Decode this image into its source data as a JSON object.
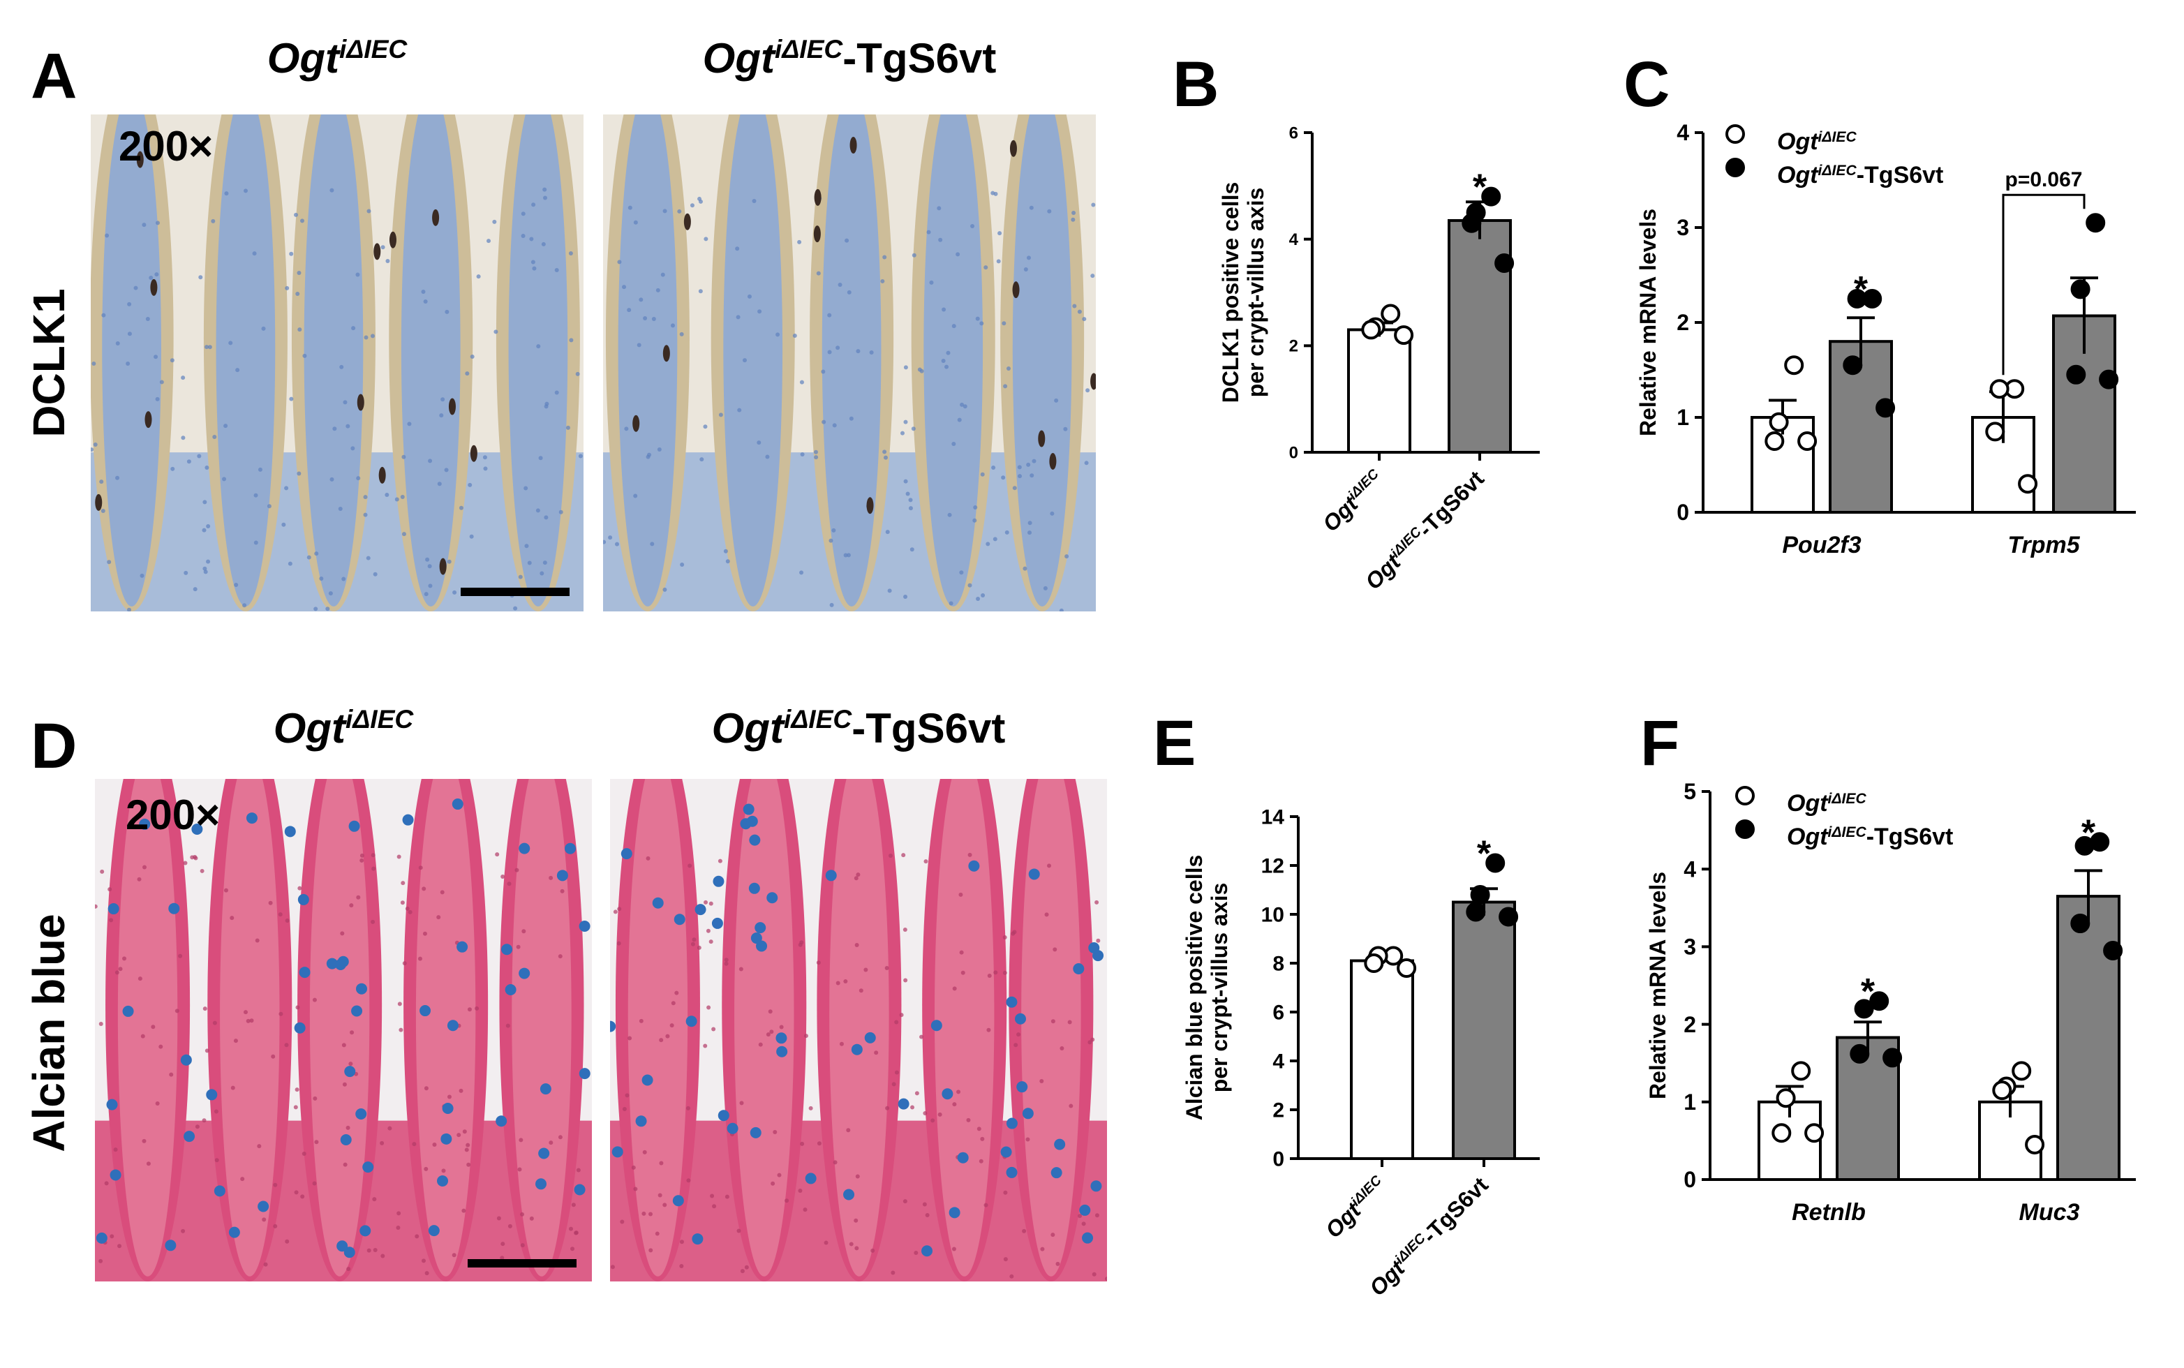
{
  "panels": [
    {
      "label": "A",
      "row_label": "DCLK1",
      "magnification": "200×",
      "titles": [
        [
          "Ogt",
          "iΔIEC"
        ],
        [
          "Ogt",
          "iΔIEC",
          "-TgS6vt"
        ]
      ]
    },
    {
      "label": "D",
      "row_label": "Alcian blue",
      "magnification": "200×",
      "titles": [
        [
          "Ogt",
          "iΔIEC"
        ],
        [
          "Ogt",
          "iΔIEC",
          "-TgS6vt"
        ]
      ]
    }
  ],
  "chart_data": [
    {
      "type": "bar",
      "panel_label": "B",
      "y_label": [
        "DCLK1 positive cells",
        "per crypt-villus axis"
      ],
      "categories": [
        [
          "Ogt",
          "iΔIEC"
        ],
        [
          "Ogt",
          "iΔIEC",
          "-TgS6vt"
        ]
      ],
      "values": [
        2.3,
        4.35
      ],
      "errors": [
        0.13,
        0.35
      ],
      "points": [
        [
          2.6,
          2.35,
          2.3,
          2.2
        ],
        [
          4.8,
          4.5,
          4.3,
          3.55
        ]
      ],
      "colors": [
        "#ffffff",
        "#808080"
      ],
      "marker_colors": [
        "#ffffff",
        "#000000"
      ],
      "ylim": [
        0,
        6
      ],
      "yticks": [
        0,
        2,
        4,
        6
      ],
      "annotations": [
        {
          "text": "*",
          "category": 1
        }
      ]
    },
    {
      "type": "bar",
      "panel_label": "C",
      "y_label": [
        "Relative mRNA levels"
      ],
      "categories": [
        "Pou2f3",
        "Trpm5"
      ],
      "series": [
        {
          "name": [
            "Ogt",
            "iΔIEC"
          ],
          "color": "#ffffff",
          "marker_color": "#ffffff",
          "values": [
            1.0,
            1.0
          ],
          "errors": [
            0.18,
            0.27
          ],
          "points": [
            [
              1.55,
              0.95,
              0.75,
              0.75
            ],
            [
              1.3,
              1.3,
              0.85,
              0.3
            ]
          ]
        },
        {
          "name": [
            "Ogt",
            "iΔIEC",
            "-TgS6vt"
          ],
          "color": "#808080",
          "marker_color": "#000000",
          "values": [
            1.8,
            2.07
          ],
          "errors": [
            0.25,
            0.4
          ],
          "points": [
            [
              2.25,
              2.25,
              1.55,
              1.1
            ],
            [
              3.05,
              2.35,
              1.45,
              1.4
            ]
          ]
        }
      ],
      "ylim": [
        0,
        4
      ],
      "yticks": [
        0,
        1,
        2,
        3,
        4
      ],
      "annotations": [
        {
          "text": "*",
          "category": 0,
          "series": 1
        },
        {
          "text": "p=0.067",
          "category": 1,
          "bracket": true
        }
      ]
    },
    {
      "type": "bar",
      "panel_label": "E",
      "y_label": [
        "Alcian blue positive cells",
        "per crypt-villus axis"
      ],
      "categories": [
        [
          "Ogt",
          "iΔIEC"
        ],
        [
          "Ogt",
          "iΔIEC",
          "-TgS6vt"
        ]
      ],
      "values": [
        8.1,
        10.5
      ],
      "errors": [
        0.2,
        0.55
      ],
      "points": [
        [
          8.3,
          8.3,
          8.0,
          7.8
        ],
        [
          12.1,
          10.8,
          10.1,
          9.9
        ]
      ],
      "colors": [
        "#ffffff",
        "#808080"
      ],
      "marker_colors": [
        "#ffffff",
        "#000000"
      ],
      "ylim": [
        0,
        14
      ],
      "yticks": [
        0,
        2,
        4,
        6,
        8,
        10,
        12,
        14
      ],
      "annotations": [
        {
          "text": "*",
          "category": 1
        }
      ]
    },
    {
      "type": "bar",
      "panel_label": "F",
      "y_label": [
        "Relative mRNA levels"
      ],
      "categories": [
        "Retnlb",
        "Muc3"
      ],
      "series": [
        {
          "name": [
            "Ogt",
            "iΔIEC"
          ],
          "color": "#ffffff",
          "marker_color": "#ffffff",
          "values": [
            1.0,
            1.0
          ],
          "errors": [
            0.2,
            0.2
          ],
          "points": [
            [
              1.4,
              1.05,
              0.6,
              0.6
            ],
            [
              1.4,
              1.2,
              1.15,
              0.45
            ]
          ]
        },
        {
          "name": [
            "Ogt",
            "iΔIEC",
            "-TgS6vt"
          ],
          "color": "#808080",
          "marker_color": "#000000",
          "values": [
            1.83,
            3.65
          ],
          "errors": [
            0.2,
            0.33
          ],
          "points": [
            [
              2.3,
              2.2,
              1.62,
              1.57
            ],
            [
              4.35,
              4.3,
              3.3,
              2.95
            ]
          ]
        }
      ],
      "ylim": [
        0,
        5
      ],
      "yticks": [
        0,
        1,
        2,
        3,
        4,
        5
      ],
      "annotations": [
        {
          "text": "*",
          "category": 0,
          "series": 1
        },
        {
          "text": "*",
          "category": 1,
          "series": 1
        }
      ]
    }
  ]
}
